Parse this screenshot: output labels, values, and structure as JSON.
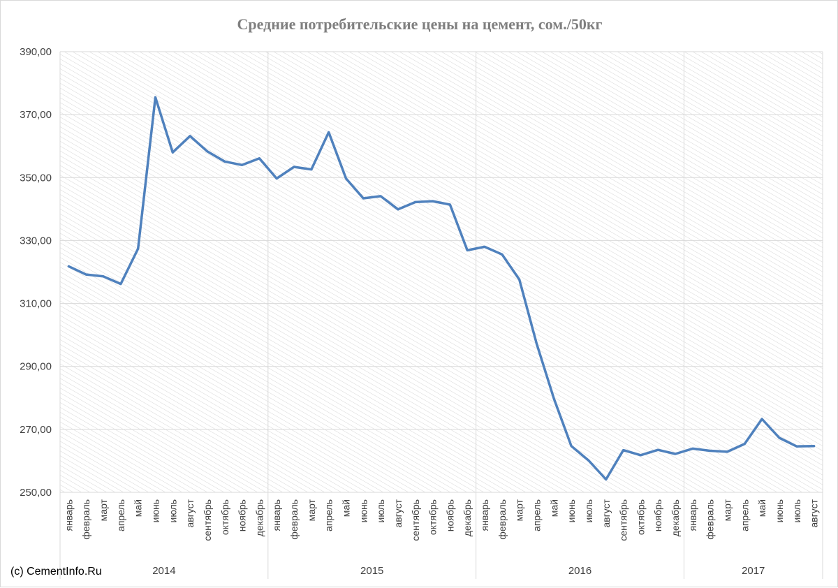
{
  "colors": {
    "line": "#4f81bd",
    "grid": "#d9d9d9",
    "hatch": "#d6d6d6",
    "title": "#7f7f7f",
    "text": "#404040"
  },
  "copyright": "(c) CementInfo.Ru",
  "chart_data": {
    "type": "line",
    "title": "Средние потребительские цены на цемент, сом./50кг",
    "xlabel": "",
    "ylabel": "",
    "ylim": [
      250,
      390
    ],
    "yticks": [
      "250,00",
      "270,00",
      "290,00",
      "310,00",
      "330,00",
      "350,00",
      "370,00",
      "390,00"
    ],
    "grid": true,
    "legend": "none",
    "years": [
      {
        "label": "2014",
        "count": 12
      },
      {
        "label": "2015",
        "count": 12
      },
      {
        "label": "2016",
        "count": 12
      },
      {
        "label": "2017",
        "count": 8
      }
    ],
    "categories": [
      "январь",
      "февраль",
      "март",
      "апрель",
      "май",
      "июнь",
      "июль",
      "август",
      "сентябрь",
      "октябрь",
      "ноябрь",
      "декабрь",
      "январь",
      "февраль",
      "март",
      "апрель",
      "май",
      "июнь",
      "июль",
      "август",
      "сентябрь",
      "октябрь",
      "ноябрь",
      "декабрь",
      "январь",
      "февраль",
      "март",
      "апрель",
      "май",
      "июнь",
      "июль",
      "август",
      "сентябрь",
      "октябрь",
      "ноябрь",
      "декабрь",
      "январь",
      "февраль",
      "март",
      "апрель",
      "май",
      "июнь",
      "июль",
      "август"
    ],
    "series": [
      {
        "values": [
          321.8,
          319.2,
          318.6,
          316.2,
          327.4,
          375.5,
          358.0,
          363.2,
          358.3,
          355.1,
          354.0,
          356.1,
          349.7,
          353.4,
          352.6,
          364.4,
          349.7,
          343.4,
          344.1,
          339.9,
          342.2,
          342.5,
          341.4,
          326.9,
          328.0,
          325.6,
          317.6,
          297.2,
          279.7,
          264.7,
          260.1,
          254.1,
          263.4,
          261.8,
          263.5,
          262.2,
          263.9,
          263.2,
          262.9,
          265.4,
          273.3,
          267.3,
          264.6,
          264.7
        ]
      }
    ]
  }
}
